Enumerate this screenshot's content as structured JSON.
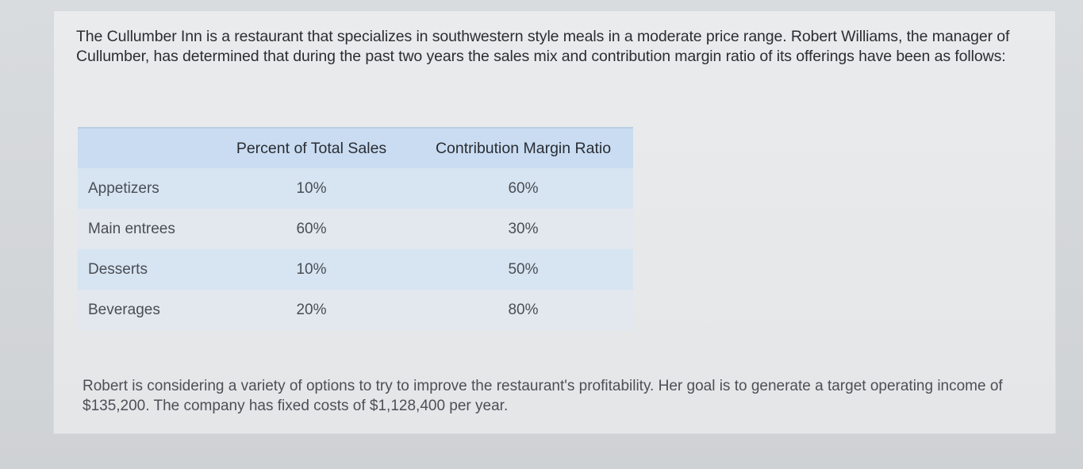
{
  "intro_text": "The Cullumber Inn is a restaurant that specializes in southwestern style meals in a moderate price range. Robert Williams, the manager of Cullumber, has determined that during the past two years the sales mix and contribution margin ratio of its offerings have been as follows:",
  "table": {
    "headers": {
      "item": "",
      "percent_of_total_sales": "Percent of Total Sales",
      "contribution_margin_ratio": "Contribution Margin Ratio"
    },
    "rows": [
      {
        "item": "Appetizers",
        "percent_of_total_sales": "10%",
        "contribution_margin_ratio": "60%"
      },
      {
        "item": "Main entrees",
        "percent_of_total_sales": "60%",
        "contribution_margin_ratio": "30%"
      },
      {
        "item": "Desserts",
        "percent_of_total_sales": "10%",
        "contribution_margin_ratio": "50%"
      },
      {
        "item": "Beverages",
        "percent_of_total_sales": "20%",
        "contribution_margin_ratio": "80%"
      }
    ]
  },
  "closing_text": "Robert is considering a variety of options to try to improve the restaurant's profitability. Her goal is to generate a target operating income of $135,200. The company has fixed costs of $1,128,400 per year."
}
